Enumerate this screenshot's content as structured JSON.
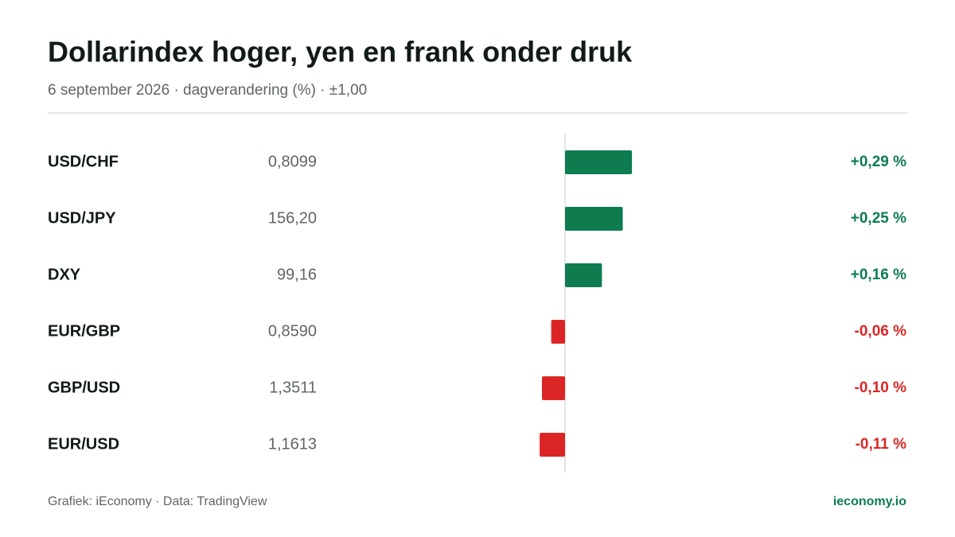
{
  "chart_data": {
    "type": "diverging-bar",
    "title": "Dollarindex hoger, yen en frank onder druk",
    "subtitle": "6 september 2026 · dagverandering (%) · ±1,00",
    "categories": [
      "USD/CHF",
      "USD/JPY",
      "DXY",
      "EUR/GBP",
      "GBP/USD",
      "EUR/USD"
    ],
    "rates": [
      "0,8099",
      "156,20",
      "99,16",
      "0,8590",
      "1,3511",
      "1,1613"
    ],
    "values": [
      0.29,
      0.25,
      0.16,
      -0.06,
      -0.1,
      -0.11
    ],
    "value_labels": [
      "+0,29 %",
      "+0,25 %",
      "+0,16 %",
      "-0,06 %",
      "-0,10 %",
      "-0,11 %"
    ],
    "xlim": [
      -1,
      1
    ],
    "color_positive": "#0e7c4f",
    "color_negative": "#dc2626",
    "source": "Grafiek: iEconomy · Data: TradingView",
    "site": "ieconomy.io"
  }
}
